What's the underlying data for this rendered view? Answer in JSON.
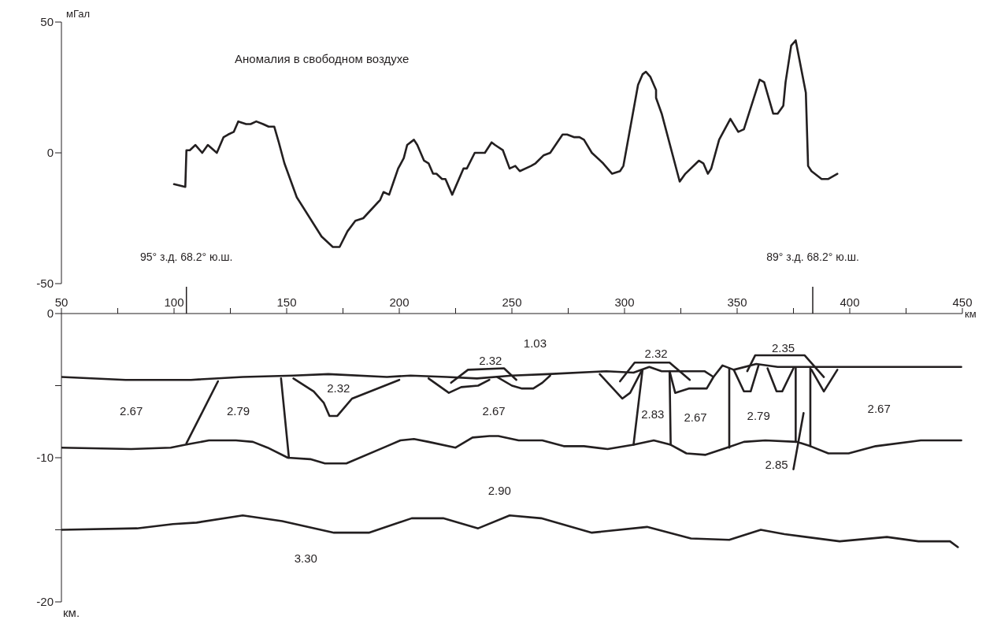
{
  "chart_data": [
    {
      "type": "line",
      "ylabel": "мГал",
      "xlim": [
        50,
        450
      ],
      "ylim": [
        -50,
        50
      ],
      "yticks": [
        -50,
        0,
        50
      ],
      "tick_labels": "y",
      "series": [
        {
          "name": "Аномалия в свободном воздухе",
          "color": "#231f20",
          "x": [
            100,
            105,
            105.5,
            107,
            109.5,
            112.5,
            115,
            119,
            122,
            124,
            126.5,
            128.5,
            132,
            134,
            136.5,
            139.5,
            142,
            144.5,
            146.5,
            149,
            154.5,
            165.5,
            170.5,
            173.5,
            177,
            180.5,
            184,
            191.5,
            193,
            195.5,
            197.5,
            199.5,
            202,
            203.5,
            206.5,
            208,
            211,
            213,
            215,
            216.5,
            219,
            220.5,
            223.5,
            228.5,
            230,
            233.5,
            238,
            241,
            242.5,
            246,
            249,
            251.5,
            253.5,
            258.5,
            260.5,
            264,
            267,
            272.5,
            274.5,
            277.5,
            280,
            282,
            285.5,
            290.5,
            294.5,
            298,
            299.5,
            306,
            308,
            309.5,
            311.5,
            314,
            314,
            316.5,
            324.5,
            327,
            333,
            335,
            337,
            338.5,
            342,
            347,
            350.5,
            353,
            360,
            362,
            366,
            368,
            370.5,
            371.5,
            374,
            376,
            380.5,
            381.5,
            383,
            387.5,
            390.5,
            394.5
          ],
          "values": [
            -12,
            -13,
            1,
            1,
            3,
            0,
            3,
            0,
            6,
            7,
            8,
            12,
            11,
            11,
            12,
            11,
            10,
            10,
            4,
            -4,
            -17,
            -32,
            -36,
            -36,
            -30,
            -26,
            -25,
            -18,
            -15,
            -16,
            -11,
            -6,
            -2,
            3,
            5,
            3,
            -3,
            -4,
            -8,
            -8,
            -10,
            -10,
            -16,
            -6,
            -6,
            0,
            0,
            4,
            3,
            1,
            -6,
            -5,
            -7,
            -5,
            -4,
            -1,
            0,
            7,
            7,
            6,
            6,
            5,
            0,
            -4,
            -8,
            -7,
            -5,
            26,
            30,
            31,
            29,
            24,
            21,
            15,
            -11,
            -8,
            -3,
            -4,
            -8,
            -6,
            5,
            13,
            8,
            9,
            28,
            27,
            15,
            15,
            18,
            27,
            41,
            43,
            23,
            -5,
            -7,
            -10,
            -10,
            -8
          ]
        }
      ]
    },
    {
      "type": "line",
      "xlabel": "км",
      "xlim": [
        50,
        450
      ],
      "xticks": [
        50,
        {
          "value": 75,
          "label": null
        },
        100,
        {
          "value": 125,
          "label": null
        },
        150,
        {
          "value": 175,
          "label": null
        },
        200,
        {
          "value": 225,
          "label": null
        },
        250,
        {
          "value": 275,
          "label": null
        },
        300,
        {
          "value": 325,
          "label": null
        },
        350,
        {
          "value": 375,
          "label": null
        },
        400,
        {
          "value": 425,
          "label": null
        },
        450
      ],
      "ylim": [
        -20,
        0
      ],
      "yticks": [
        0,
        {
          "value": -5,
          "label": null
        },
        -10,
        {
          "value": -15,
          "label": null
        },
        -20
      ],
      "annotations": [
        "95° з.д.   68.2° ю.ш.",
        "89° з.д.   68.2° ю.ш.",
        "2.67",
        "2.79",
        "2.32",
        "2.32",
        "2.67",
        "2.90",
        "3.30",
        "1.03",
        "2.32",
        "2.83",
        "2.67",
        "2.79",
        "2.35",
        "2.85",
        "2.67",
        "км."
      ],
      "series": [
        {
          "color": "#231f20",
          "x": [
            50,
            78.5,
            107.5,
            130.5,
            153,
            168.5,
            194.5,
            205,
            221,
            234.5,
            250,
            266,
            292,
            304,
            311,
            316.5,
            335.5,
            339.5,
            343.5,
            348.5,
            358.5,
            368,
            422.5,
            449.5
          ],
          "values": [
            -4.4,
            -4.6,
            -4.6,
            -4.4,
            -4.3,
            -4.2,
            -4.4,
            -4.3,
            -4.4,
            -4.5,
            -4.3,
            -4.2,
            -4,
            -4.1,
            -3.7,
            -4,
            -4,
            -4.4,
            -3.6,
            -3.9,
            -3.5,
            -3.7,
            -3.7,
            -3.7
          ]
        },
        {
          "color": "#231f20",
          "x": [
            50,
            81,
            98.5,
            105,
            115.5,
            127.5,
            135,
            141.5,
            150.5,
            160.5,
            167,
            176.5,
            194.5,
            200.5,
            206.5,
            213,
            225,
            232.5,
            240,
            244,
            253,
            263.5,
            273,
            282,
            292.5,
            304,
            313,
            320.5,
            327.5,
            336,
            345.5,
            353,
            362.5,
            376.5,
            382.5,
            390.5,
            399.5,
            411.5,
            431.5,
            449.5
          ],
          "values": [
            -9.3,
            -9.4,
            -9.3,
            -9.1,
            -8.8,
            -8.8,
            -8.9,
            -9.3,
            -10,
            -10.1,
            -10.4,
            -10.4,
            -9.2,
            -8.8,
            -8.7,
            -8.9,
            -9.3,
            -8.6,
            -8.5,
            -8.5,
            -8.8,
            -8.8,
            -9.2,
            -9.2,
            -9.4,
            -9.1,
            -8.8,
            -9.1,
            -9.7,
            -9.8,
            -9.3,
            -8.9,
            -8.8,
            -8.9,
            -9.2,
            -9.7,
            -9.7,
            -9.2,
            -8.8,
            -8.8
          ]
        },
        {
          "color": "#231f20",
          "x": [
            50,
            83.5,
            99.5,
            110,
            130.5,
            148,
            171,
            186.5,
            205.5,
            219.5,
            235,
            249,
            263,
            285.5,
            310,
            329.5,
            346.5,
            360.5,
            371,
            395.5,
            416.5,
            430.5,
            444.5,
            448
          ],
          "values": [
            -15,
            -14.9,
            -14.6,
            -14.5,
            -14,
            -14.4,
            -15.2,
            -15.2,
            -14.2,
            -14.2,
            -14.9,
            -14,
            -14.2,
            -15.2,
            -14.8,
            -15.6,
            -15.7,
            -15,
            -15.3,
            -15.8,
            -15.5,
            -15.8,
            -15.8,
            -16.2
          ]
        },
        {
          "color": "#231f20",
          "x": [
            153,
            162,
            166.5,
            169,
            172.5,
            179,
            200
          ],
          "values": [
            -4.5,
            -5.4,
            -6.2,
            -7.1,
            -7.1,
            -5.9,
            -4.6
          ]
        },
        {
          "color": "#231f20",
          "x": [
            213,
            222,
            227.5,
            235,
            240
          ],
          "values": [
            -4.5,
            -5.5,
            -5.1,
            -5,
            -4.6
          ]
        },
        {
          "color": "#231f20",
          "x": [
            243.5,
            250,
            254.5,
            259.5,
            263.5,
            267
          ],
          "values": [
            -4.4,
            -5,
            -5.2,
            -5.2,
            -4.8,
            -4.3
          ]
        },
        {
          "color": "#231f20",
          "x": [
            289,
            299,
            302.5,
            307.5
          ],
          "values": [
            -4.2,
            -5.9,
            -5.5,
            -4
          ]
        },
        {
          "color": "#231f20",
          "x": [
            320,
            322.5,
            328.5,
            336.5,
            339.5
          ],
          "values": [
            -4,
            -5.5,
            -5.2,
            -5.2,
            -4.4
          ]
        },
        {
          "color": "#231f20",
          "x": [
            348.5,
            353,
            356,
            359.5
          ],
          "values": [
            -3.9,
            -5.4,
            -5.4,
            -3.6
          ]
        },
        {
          "color": "#231f20",
          "x": [
            363.5,
            367.5,
            370,
            375
          ],
          "values": [
            -3.8,
            -5.4,
            -5.4,
            -3.8
          ]
        },
        {
          "color": "#231f20",
          "x": [
            383,
            388.5,
            394.5
          ],
          "values": [
            -3.9,
            -5.4,
            -3.9
          ]
        },
        {
          "color": "#231f20",
          "x": [
            119.5,
            105.5
          ],
          "values": [
            -4.7,
            -9
          ]
        },
        {
          "color": "#231f20",
          "x": [
            147.5,
            151
          ],
          "values": [
            -4.5,
            -10
          ]
        },
        {
          "color": "#231f20",
          "x": [
            308,
            304
          ],
          "values": [
            -3.9,
            -9.1
          ]
        },
        {
          "color": "#231f20",
          "x": [
            320,
            320.5
          ],
          "values": [
            -4,
            -9.1
          ]
        },
        {
          "color": "#231f20",
          "x": [
            346.5,
            346.5
          ],
          "values": [
            -3.8,
            -9.3
          ]
        },
        {
          "color": "#231f20",
          "x": [
            376,
            376
          ],
          "values": [
            -3.8,
            -8.9
          ]
        },
        {
          "color": "#231f20",
          "x": [
            382.5,
            382.5
          ],
          "values": [
            -3.8,
            -9.2
          ]
        },
        {
          "color": "#231f20",
          "x": [
            379.5,
            375
          ],
          "values": [
            -6.9,
            -10.8
          ]
        },
        {
          "color": "#231f20",
          "x": [
            223,
            230.5,
            246.5,
            252
          ],
          "values": [
            -4.8,
            -3.9,
            -3.8,
            -4.6
          ]
        },
        {
          "color": "#231f20",
          "x": [
            298,
            304.5,
            320,
            329
          ],
          "values": [
            -4.7,
            -3.4,
            -3.4,
            -4.6
          ]
        },
        {
          "color": "#231f20",
          "x": [
            354.5,
            358,
            380,
            388.5
          ],
          "values": [
            -4,
            -2.9,
            -2.9,
            -4.4
          ]
        }
      ]
    }
  ]
}
